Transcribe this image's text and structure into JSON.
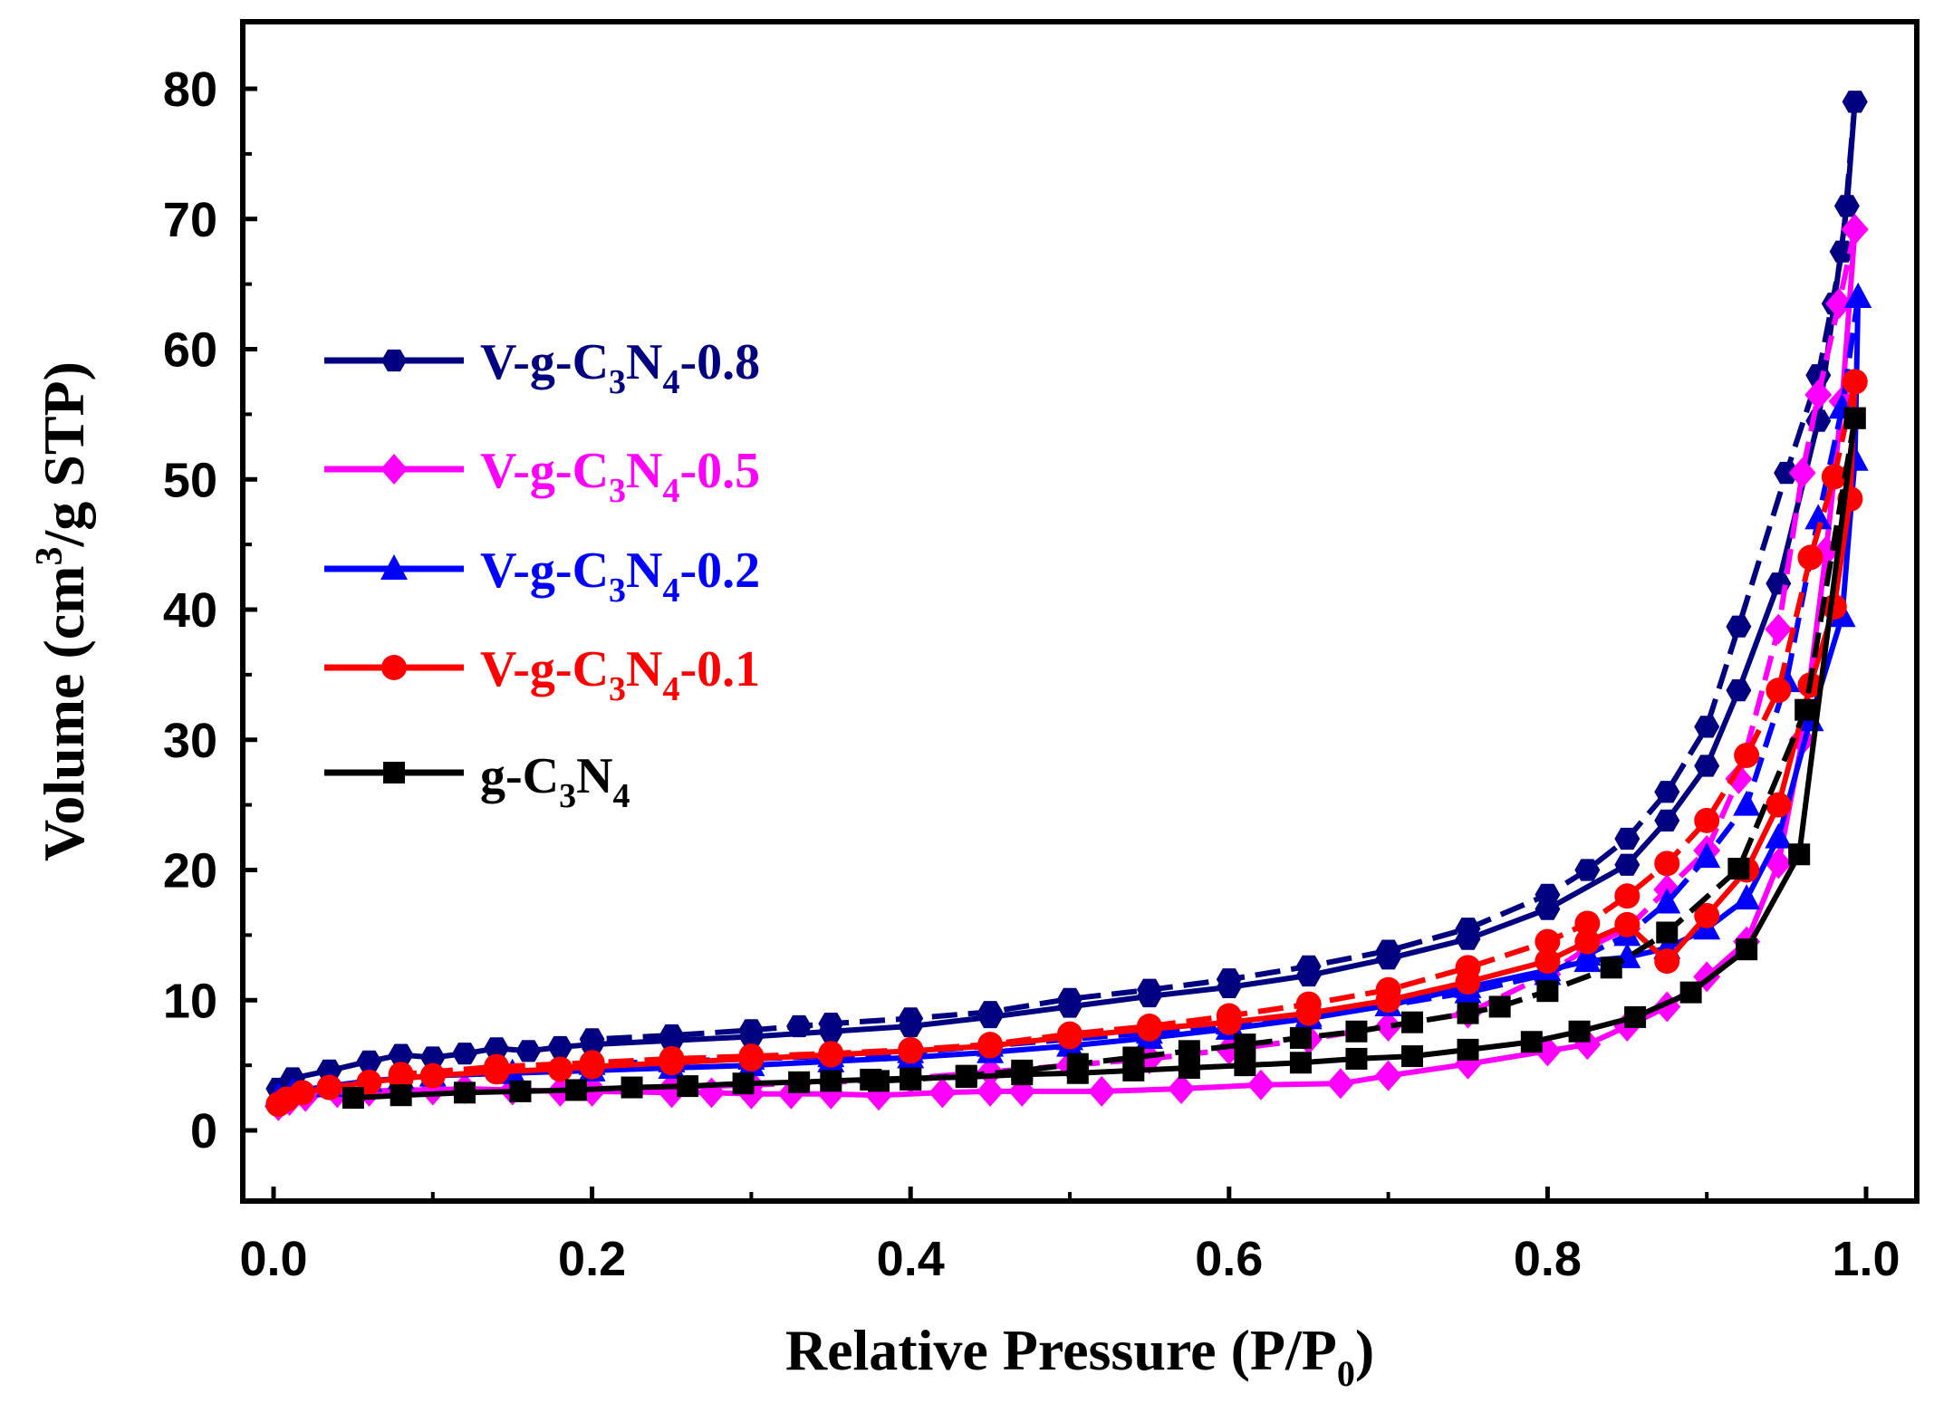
{
  "chart_data": {
    "type": "line",
    "title": "",
    "xlabel": "Relative Pressure (P/P0)",
    "xlabel_main": "Relative Pressure (P/P",
    "xlabel_sub": "0",
    "xlabel_tail": ")",
    "ylabel": "Volume (cm3/g STP)",
    "ylabel_main": "Volume (cm",
    "ylabel_sup": "3",
    "ylabel_tail": "/g STP)",
    "xlim": [
      -0.02,
      1.03
    ],
    "ylim": [
      -5,
      85
    ],
    "xticks": [
      0.0,
      0.2,
      0.4,
      0.6,
      0.8,
      1.0
    ],
    "xtick_labels": [
      "0.0",
      "0.2",
      "0.4",
      "0.6",
      "0.8",
      "1.0"
    ],
    "yticks": [
      0,
      10,
      20,
      30,
      40,
      50,
      60,
      70,
      80
    ],
    "ytick_labels": [
      "0",
      "10",
      "20",
      "30",
      "40",
      "50",
      "60",
      "70",
      "80"
    ],
    "legend_position": "upper-left",
    "series": [
      {
        "name": "V-g-C3N4-0.8",
        "legend_parts": [
          "V-g-C",
          "3",
          "N",
          "4",
          "-0.8"
        ],
        "color": "#000080",
        "marker": "hexagon",
        "adsorption": [
          [
            0.003,
            3.2
          ],
          [
            0.012,
            4.0
          ],
          [
            0.035,
            4.6
          ],
          [
            0.06,
            5.3
          ],
          [
            0.08,
            5.8
          ],
          [
            0.1,
            5.6
          ],
          [
            0.12,
            5.9
          ],
          [
            0.14,
            6.3
          ],
          [
            0.16,
            6.1
          ],
          [
            0.18,
            6.4
          ],
          [
            0.2,
            6.6
          ],
          [
            0.25,
            6.9
          ],
          [
            0.3,
            7.2
          ],
          [
            0.35,
            7.6
          ],
          [
            0.4,
            8.0
          ],
          [
            0.45,
            8.7
          ],
          [
            0.5,
            9.5
          ],
          [
            0.55,
            10.3
          ],
          [
            0.6,
            11.0
          ],
          [
            0.65,
            11.9
          ],
          [
            0.7,
            13.2
          ],
          [
            0.75,
            14.7
          ],
          [
            0.8,
            17.0
          ],
          [
            0.85,
            20.4
          ],
          [
            0.875,
            23.8
          ],
          [
            0.9,
            28.0
          ],
          [
            0.92,
            33.8
          ],
          [
            0.945,
            42.0
          ],
          [
            0.97,
            54.5
          ],
          [
            0.98,
            63.5
          ],
          [
            0.988,
            71.0
          ],
          [
            0.993,
            79.0
          ]
        ],
        "desorption": [
          [
            0.993,
            79.0
          ],
          [
            0.985,
            67.5
          ],
          [
            0.97,
            58.0
          ],
          [
            0.95,
            50.5
          ],
          [
            0.92,
            38.7
          ],
          [
            0.9,
            31.0
          ],
          [
            0.875,
            26.0
          ],
          [
            0.85,
            22.4
          ],
          [
            0.825,
            20.0
          ],
          [
            0.8,
            18.1
          ],
          [
            0.75,
            15.5
          ],
          [
            0.7,
            13.8
          ],
          [
            0.65,
            12.6
          ],
          [
            0.6,
            11.6
          ],
          [
            0.55,
            10.8
          ],
          [
            0.5,
            10.1
          ],
          [
            0.45,
            9.1
          ],
          [
            0.4,
            8.6
          ],
          [
            0.35,
            8.2
          ],
          [
            0.33,
            8.0
          ],
          [
            0.3,
            7.7
          ],
          [
            0.25,
            7.3
          ],
          [
            0.2,
            7.0
          ]
        ]
      },
      {
        "name": "V-g-C3N4-0.5",
        "legend_parts": [
          "V-g-C",
          "3",
          "N",
          "4",
          "-0.5"
        ],
        "color": "#ff00ff",
        "marker": "diamond",
        "adsorption": [
          [
            0.003,
            1.9
          ],
          [
            0.01,
            2.3
          ],
          [
            0.02,
            2.6
          ],
          [
            0.04,
            2.9
          ],
          [
            0.06,
            3.0
          ],
          [
            0.08,
            3.1
          ],
          [
            0.1,
            3.1
          ],
          [
            0.12,
            3.2
          ],
          [
            0.15,
            3.1
          ],
          [
            0.18,
            3.0
          ],
          [
            0.2,
            3.0
          ],
          [
            0.25,
            2.9
          ],
          [
            0.275,
            2.9
          ],
          [
            0.3,
            2.8
          ],
          [
            0.325,
            2.8
          ],
          [
            0.35,
            2.8
          ],
          [
            0.38,
            2.7
          ],
          [
            0.42,
            2.9
          ],
          [
            0.45,
            3.0
          ],
          [
            0.47,
            3.0
          ],
          [
            0.52,
            3.0
          ],
          [
            0.57,
            3.2
          ],
          [
            0.62,
            3.5
          ],
          [
            0.67,
            3.6
          ],
          [
            0.7,
            4.2
          ],
          [
            0.75,
            5.1
          ],
          [
            0.8,
            6.1
          ],
          [
            0.825,
            6.6
          ],
          [
            0.85,
            8.0
          ],
          [
            0.875,
            9.5
          ],
          [
            0.9,
            11.8
          ],
          [
            0.925,
            14.5
          ],
          [
            0.945,
            20.5
          ],
          [
            0.96,
            30.0
          ],
          [
            0.975,
            44.5
          ],
          [
            0.985,
            56.0
          ],
          [
            0.993,
            69.2
          ]
        ],
        "desorption": [
          [
            0.993,
            69.2
          ],
          [
            0.983,
            63.5
          ],
          [
            0.97,
            56.5
          ],
          [
            0.96,
            50.5
          ],
          [
            0.945,
            38.5
          ],
          [
            0.92,
            27.0
          ],
          [
            0.9,
            21.5
          ],
          [
            0.875,
            18.5
          ],
          [
            0.85,
            15.5
          ],
          [
            0.825,
            14.0
          ],
          [
            0.8,
            12.0
          ],
          [
            0.75,
            9.0
          ],
          [
            0.7,
            8.0
          ],
          [
            0.65,
            7.0
          ],
          [
            0.6,
            6.2
          ],
          [
            0.55,
            5.5
          ],
          [
            0.5,
            5.0
          ],
          [
            0.45,
            4.5
          ],
          [
            0.4,
            4.0
          ],
          [
            0.35,
            3.7
          ],
          [
            0.3,
            3.5
          ],
          [
            0.25,
            3.3
          ],
          [
            0.2,
            3.2
          ]
        ]
      },
      {
        "name": "V-g-C3N4-0.2",
        "legend_parts": [
          "V-g-C",
          "3",
          "N",
          "4",
          "-0.2"
        ],
        "color": "#0000ff",
        "marker": "triangle",
        "adsorption": [
          [
            0.003,
            2.6
          ],
          [
            0.012,
            3.0
          ],
          [
            0.035,
            3.4
          ],
          [
            0.06,
            3.8
          ],
          [
            0.08,
            4.0
          ],
          [
            0.1,
            4.2
          ],
          [
            0.15,
            4.4
          ],
          [
            0.2,
            4.6
          ],
          [
            0.25,
            4.8
          ],
          [
            0.3,
            5.0
          ],
          [
            0.35,
            5.3
          ],
          [
            0.4,
            5.6
          ],
          [
            0.45,
            6.0
          ],
          [
            0.5,
            6.5
          ],
          [
            0.55,
            7.1
          ],
          [
            0.6,
            7.8
          ],
          [
            0.65,
            8.6
          ],
          [
            0.7,
            9.6
          ],
          [
            0.75,
            11.0
          ],
          [
            0.8,
            12.3
          ],
          [
            0.825,
            13.0
          ],
          [
            0.85,
            13.3
          ],
          [
            0.875,
            14.0
          ],
          [
            0.9,
            15.5
          ],
          [
            0.925,
            17.8
          ],
          [
            0.945,
            22.5
          ],
          [
            0.965,
            31.5
          ],
          [
            0.985,
            39.5
          ],
          [
            0.993,
            51.5
          ],
          [
            0.995,
            64.0
          ]
        ],
        "desorption": [
          [
            0.995,
            64.0
          ],
          [
            0.985,
            55.5
          ],
          [
            0.97,
            47.0
          ],
          [
            0.95,
            34.5
          ],
          [
            0.925,
            25.0
          ],
          [
            0.9,
            21.0
          ],
          [
            0.875,
            17.5
          ],
          [
            0.85,
            15.0
          ],
          [
            0.825,
            13.5
          ],
          [
            0.8,
            12.0
          ],
          [
            0.75,
            10.6
          ],
          [
            0.7,
            9.6
          ],
          [
            0.65,
            8.8
          ],
          [
            0.6,
            8.2
          ],
          [
            0.55,
            7.5
          ],
          [
            0.5,
            7.0
          ],
          [
            0.45,
            6.5
          ],
          [
            0.4,
            6.0
          ],
          [
            0.35,
            5.7
          ],
          [
            0.3,
            5.5
          ],
          [
            0.25,
            5.3
          ],
          [
            0.2,
            5.1
          ]
        ]
      },
      {
        "name": "V-g-C3N4-0.1",
        "legend_parts": [
          "V-g-C",
          "3",
          "N",
          "4",
          "-0.1"
        ],
        "color": "#ff0000",
        "marker": "circle",
        "adsorption": [
          [
            0.003,
            2.0
          ],
          [
            0.008,
            2.4
          ],
          [
            0.018,
            2.9
          ],
          [
            0.035,
            3.3
          ],
          [
            0.06,
            3.7
          ],
          [
            0.08,
            4.0
          ],
          [
            0.1,
            4.2
          ],
          [
            0.14,
            4.5
          ],
          [
            0.18,
            4.7
          ],
          [
            0.2,
            4.9
          ],
          [
            0.25,
            5.2
          ],
          [
            0.3,
            5.5
          ],
          [
            0.35,
            5.8
          ],
          [
            0.4,
            6.1
          ],
          [
            0.45,
            6.5
          ],
          [
            0.5,
            7.2
          ],
          [
            0.55,
            7.8
          ],
          [
            0.6,
            8.3
          ],
          [
            0.65,
            9.0
          ],
          [
            0.7,
            10.0
          ],
          [
            0.75,
            11.4
          ],
          [
            0.8,
            13.0
          ],
          [
            0.825,
            14.5
          ],
          [
            0.85,
            15.8
          ],
          [
            0.875,
            13.0
          ],
          [
            0.9,
            16.5
          ],
          [
            0.925,
            20.0
          ],
          [
            0.945,
            25.0
          ],
          [
            0.965,
            34.2
          ],
          [
            0.98,
            40.2
          ],
          [
            0.99,
            48.5
          ],
          [
            0.993,
            57.5
          ]
        ],
        "desorption": [
          [
            0.993,
            57.5
          ],
          [
            0.98,
            50.2
          ],
          [
            0.965,
            44.0
          ],
          [
            0.945,
            33.8
          ],
          [
            0.925,
            28.8
          ],
          [
            0.9,
            23.8
          ],
          [
            0.875,
            20.5
          ],
          [
            0.85,
            18.0
          ],
          [
            0.825,
            15.9
          ],
          [
            0.8,
            14.5
          ],
          [
            0.75,
            12.5
          ],
          [
            0.7,
            10.8
          ],
          [
            0.65,
            9.7
          ],
          [
            0.6,
            8.8
          ],
          [
            0.55,
            8.0
          ],
          [
            0.5,
            7.4
          ],
          [
            0.45,
            6.6
          ],
          [
            0.4,
            6.2
          ],
          [
            0.35,
            5.9
          ],
          [
            0.3,
            5.7
          ],
          [
            0.25,
            5.5
          ],
          [
            0.2,
            5.2
          ],
          [
            0.14,
            4.9
          ],
          [
            0.08,
            4.3
          ]
        ]
      },
      {
        "name": "g-C3N4",
        "legend_parts": [
          "g-C",
          "3",
          "N",
          "4",
          ""
        ],
        "color": "#000000",
        "marker": "square",
        "adsorption": [
          [
            0.05,
            2.5
          ],
          [
            0.08,
            2.7
          ],
          [
            0.12,
            2.9
          ],
          [
            0.155,
            3.0
          ],
          [
            0.19,
            3.1
          ],
          [
            0.225,
            3.3
          ],
          [
            0.26,
            3.4
          ],
          [
            0.295,
            3.6
          ],
          [
            0.33,
            3.7
          ],
          [
            0.35,
            3.8
          ],
          [
            0.375,
            3.9
          ],
          [
            0.4,
            4.0
          ],
          [
            0.435,
            4.1
          ],
          [
            0.47,
            4.3
          ],
          [
            0.505,
            4.4
          ],
          [
            0.54,
            4.6
          ],
          [
            0.575,
            4.8
          ],
          [
            0.61,
            5.0
          ],
          [
            0.645,
            5.2
          ],
          [
            0.68,
            5.5
          ],
          [
            0.715,
            5.7
          ],
          [
            0.75,
            6.2
          ],
          [
            0.79,
            6.8
          ],
          [
            0.82,
            7.6
          ],
          [
            0.855,
            8.7
          ],
          [
            0.89,
            10.6
          ],
          [
            0.925,
            13.9
          ],
          [
            0.958,
            21.2
          ],
          [
            0.993,
            54.7
          ]
        ],
        "desorption": [
          [
            0.993,
            54.7
          ],
          [
            0.962,
            32.3
          ],
          [
            0.92,
            20.1
          ],
          [
            0.875,
            15.2
          ],
          [
            0.84,
            12.5
          ],
          [
            0.8,
            10.7
          ],
          [
            0.77,
            9.5
          ],
          [
            0.75,
            9.0
          ],
          [
            0.715,
            8.3
          ],
          [
            0.68,
            7.6
          ],
          [
            0.645,
            7.1
          ],
          [
            0.61,
            6.6
          ],
          [
            0.575,
            6.1
          ],
          [
            0.54,
            5.6
          ],
          [
            0.505,
            5.1
          ],
          [
            0.47,
            4.6
          ],
          [
            0.435,
            4.2
          ],
          [
            0.4,
            3.9
          ],
          [
            0.38,
            3.8
          ]
        ]
      }
    ]
  }
}
